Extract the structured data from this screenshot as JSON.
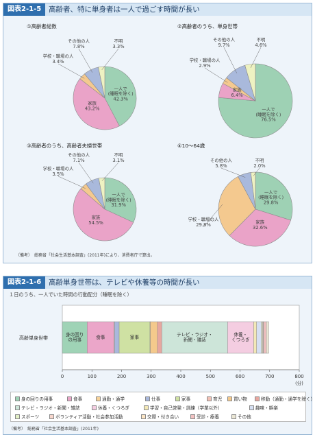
{
  "figure1": {
    "badge": "図表2-1-5",
    "title": "高齢者、特に単身者は一人で過ごす時間が長い",
    "note": "（備考）　総務省「社会生活基本調査」(2011年)により、消費者庁で算出。"
  },
  "figure2": {
    "badge": "図表2-1-6",
    "title": "高齢単身世帯は、テレビや休養等の時間が長い",
    "subtitle": "１日のうち、一人でいた時間の行動配分（睡眠を除く）",
    "note": "（備考）　総務省「社会生活基本調査」(2011年)"
  },
  "colors": {
    "alone": "#9ed1b4",
    "family": "#eaa3c8",
    "school_work": "#f4c98f",
    "other": "#a9b9dc",
    "unknown": "#eef2c2"
  },
  "chart_data": [
    {
      "type": "pie",
      "title": "①高齢者総数",
      "slices": [
        {
          "label": "一人で\n(睡眠を除く)",
          "value": 42.3,
          "value_label": "42.3%"
        },
        {
          "label": "家族",
          "value": 43.2,
          "value_label": "43.2%"
        },
        {
          "label": "学校・職場の人",
          "value": 3.4,
          "value_label": "3.4%"
        },
        {
          "label": "その他の人",
          "value": 7.8,
          "value_label": "7.8%"
        },
        {
          "label": "不明",
          "value": 3.3,
          "value_label": "3.3%"
        }
      ]
    },
    {
      "type": "pie",
      "title": "②高齢者のうち、単身世帯",
      "slices": [
        {
          "label": "一人で\n(睡眠を除く)",
          "value": 76.5,
          "value_label": "76.5%"
        },
        {
          "label": "家族",
          "value": 6.4,
          "value_label": "6.4%"
        },
        {
          "label": "学校・職場の人",
          "value": 2.9,
          "value_label": "2.9%"
        },
        {
          "label": "その他の人",
          "value": 9.7,
          "value_label": "9.7%"
        },
        {
          "label": "不明",
          "value": 4.6,
          "value_label": "4.6%"
        }
      ]
    },
    {
      "type": "pie",
      "title": "③高齢者のうち、高齢者夫婦世帯",
      "slices": [
        {
          "label": "一人で\n(睡眠を除く)",
          "value": 31.9,
          "value_label": "31.9%"
        },
        {
          "label": "家族",
          "value": 54.5,
          "value_label": "54.5%"
        },
        {
          "label": "学校・職場の人",
          "value": 3.5,
          "value_label": "3.5%"
        },
        {
          "label": "その他の人",
          "value": 7.1,
          "value_label": "7.1%"
        },
        {
          "label": "不明",
          "value": 3.1,
          "value_label": "3.1%"
        }
      ]
    },
    {
      "type": "pie",
      "title": "④10～64歳",
      "slices": [
        {
          "label": "一人で\n(睡眠を除く)",
          "value": 29.8,
          "value_label": "29.8%"
        },
        {
          "label": "家族",
          "value": 32.6,
          "value_label": "32.6%"
        },
        {
          "label": "学校・職場の人",
          "value": 29.8,
          "value_label": "29.8%"
        },
        {
          "label": "その他の人",
          "value": 5.8,
          "value_label": "5.8%"
        },
        {
          "label": "不明",
          "value": 2.0,
          "value_label": "2.0%"
        }
      ]
    },
    {
      "type": "bar",
      "orientation": "horizontal",
      "stacked": true,
      "categories": [
        "高齢単身世帯"
      ],
      "xlabel": "(分)",
      "xlim": [
        0,
        800
      ],
      "xticks": [
        0,
        100,
        200,
        300,
        400,
        500,
        600,
        700,
        800
      ],
      "segments": [
        {
          "name": "身の回りの用事",
          "value": 84,
          "label": "身の回り\nの用事",
          "color": "#9fd3b6"
        },
        {
          "name": "食事",
          "value": 90,
          "label": "食事",
          "color": "#eba6c9"
        },
        {
          "name": "通勤・通学",
          "value": 2,
          "color": "#f6d29a"
        },
        {
          "name": "仕事",
          "value": 16,
          "color": "#a9b8dc"
        },
        {
          "name": "家事",
          "value": 104,
          "label": "家事",
          "color": "#cfe1a3"
        },
        {
          "name": "育児",
          "value": 1,
          "color": "#f2c1b6"
        },
        {
          "name": "買い物",
          "value": 24,
          "color": "#f4c98c"
        },
        {
          "name": "移動（通勤・通学を除く）",
          "value": 15,
          "color": "#e7a7a0"
        },
        {
          "name": "テレビ・ラジオ・新聞・雑誌",
          "value": 222,
          "label": "テレビ・ラジオ・\n新聞・雑誌",
          "color": "#cde5d9"
        },
        {
          "name": "休養・くつろぎ",
          "value": 88,
          "label": "休養・\nくつろぎ",
          "color": "#f4cde1"
        },
        {
          "name": "学習・自己啓発・訓練（学業以外）",
          "value": 10,
          "color": "#f3e8b6"
        },
        {
          "name": "趣味・娯楽",
          "value": 16,
          "color": "#d5dff2"
        },
        {
          "name": "スポーツ",
          "value": 4,
          "color": "#e4f1c7"
        },
        {
          "name": "ボランティア活動・社会参加活動",
          "value": 2,
          "color": "#f7d6cc"
        },
        {
          "name": "交際・付き合い",
          "value": 2,
          "color": "#fce5c4"
        },
        {
          "name": "受診・療養",
          "value": 9,
          "color": "#f3c2c2"
        },
        {
          "name": "その他",
          "value": 8,
          "color": "#eae6d4"
        }
      ]
    }
  ]
}
